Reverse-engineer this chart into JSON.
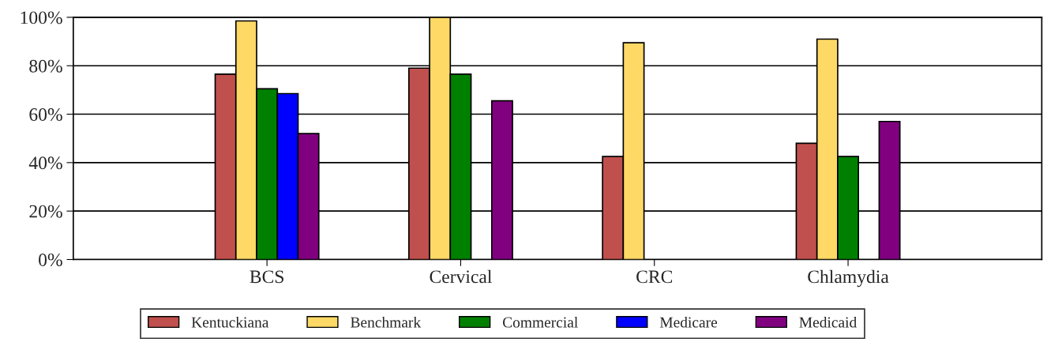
{
  "chart_data": {
    "type": "bar",
    "categories": [
      "BCS",
      "Cervical",
      "CRC",
      "Chlamydia"
    ],
    "series": [
      {
        "name": "Kentuckiana",
        "color": "#c0504d",
        "values": [
          76.5,
          79,
          42.5,
          48
        ]
      },
      {
        "name": "Benchmark",
        "color": "#ffd966",
        "values": [
          98.5,
          100,
          89.5,
          91
        ]
      },
      {
        "name": "Commercial",
        "color": "#008000",
        "values": [
          70.5,
          76.5,
          null,
          42.5
        ]
      },
      {
        "name": "Medicare",
        "color": "#0000ff",
        "values": [
          68.5,
          null,
          null,
          null
        ]
      },
      {
        "name": "Medicaid",
        "color": "#800080",
        "values": [
          52,
          65.5,
          null,
          57
        ]
      }
    ],
    "ylim": [
      0,
      100
    ],
    "yticks": [
      {
        "value": 0,
        "label": "0%"
      },
      {
        "value": 20,
        "label": "20%"
      },
      {
        "value": 40,
        "label": "40%"
      },
      {
        "value": 60,
        "label": "60%"
      },
      {
        "value": 80,
        "label": "80%"
      },
      {
        "value": 100,
        "label": "100%"
      }
    ],
    "grid": "y",
    "legend": "bottom"
  }
}
